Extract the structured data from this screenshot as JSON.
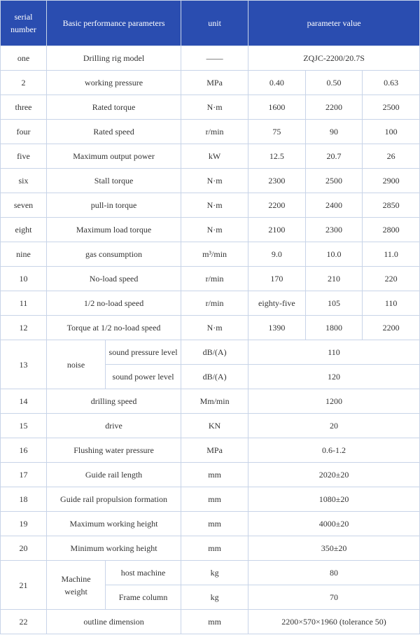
{
  "header": {
    "serial": "serial number",
    "param": "Basic performance parameters",
    "unit": "unit",
    "value": "parameter value"
  },
  "rows": {
    "r1": {
      "sn": "one",
      "param": "Drilling rig model",
      "unit": "——",
      "val": "ZQJC-2200/20.7S"
    },
    "r2": {
      "sn": "2",
      "param": "working pressure",
      "unit": "MPa",
      "v1": "0.40",
      "v2": "0.50",
      "v3": "0.63"
    },
    "r3": {
      "sn": "three",
      "param": "Rated torque",
      "unit": "N·m",
      "v1": "1600",
      "v2": "2200",
      "v3": "2500"
    },
    "r4": {
      "sn": "four",
      "param": "Rated speed",
      "unit": "r/min",
      "v1": "75",
      "v2": "90",
      "v3": "100"
    },
    "r5": {
      "sn": "five",
      "param": "Maximum output power",
      "unit": "kW",
      "v1": "12.5",
      "v2": "20.7",
      "v3": "26"
    },
    "r6": {
      "sn": "six",
      "param": "Stall torque",
      "unit": "N·m",
      "v1": "2300",
      "v2": "2500",
      "v3": "2900"
    },
    "r7": {
      "sn": "seven",
      "param": "pull-in torque",
      "unit": "N·m",
      "v1": "2200",
      "v2": "2400",
      "v3": "2850"
    },
    "r8": {
      "sn": "eight",
      "param": "Maximum load torque",
      "unit": "N·m",
      "v1": "2100",
      "v2": "2300",
      "v3": "2800"
    },
    "r9": {
      "sn": "nine",
      "param": "gas consumption",
      "unit": "m³/min",
      "v1": "9.0",
      "v2": "10.0",
      "v3": "11.0"
    },
    "r10": {
      "sn": "10",
      "param": "No-load speed",
      "unit": "r/min",
      "v1": "170",
      "v2": "210",
      "v3": "220"
    },
    "r11": {
      "sn": "11",
      "param": "1/2 no-load speed",
      "unit": "r/min",
      "v1": "eighty-five",
      "v2": "105",
      "v3": "110"
    },
    "r12": {
      "sn": "12",
      "param": "Torque at 1/2 no-load speed",
      "unit": "N·m",
      "v1": "1390",
      "v2": "1800",
      "v3": "2200"
    },
    "r13": {
      "sn": "13",
      "param": "noise",
      "sub1": "sound pressure level",
      "unit1": "dB/(A)",
      "val1": "110",
      "sub2": "sound power level",
      "unit2": "dB/(A)",
      "val2": "120"
    },
    "r14": {
      "sn": "14",
      "param": "drilling speed",
      "unit": "Mm/min",
      "val": "1200"
    },
    "r15": {
      "sn": "15",
      "param": "drive",
      "unit": "KN",
      "val": "20"
    },
    "r16": {
      "sn": "16",
      "param": "Flushing water pressure",
      "unit": "MPa",
      "val": "0.6-1.2"
    },
    "r17": {
      "sn": "17",
      "param": "Guide rail length",
      "unit": "mm",
      "val": "2020±20"
    },
    "r18": {
      "sn": "18",
      "param": "Guide rail propulsion formation",
      "unit": "mm",
      "val": "1080±20"
    },
    "r19": {
      "sn": "19",
      "param": "Maximum working height",
      "unit": "mm",
      "val": "4000±20"
    },
    "r20": {
      "sn": "20",
      "param": "Minimum working height",
      "unit": "mm",
      "val": "350±20"
    },
    "r21": {
      "sn": "21",
      "param": "Machine weight",
      "sub1": "host machine",
      "unit1": "kg",
      "val1": "80",
      "sub2": "Frame column",
      "unit2": "kg",
      "val2": "70"
    },
    "r22": {
      "sn": "22",
      "param": "outline dimension",
      "unit": "mm",
      "val": "2200×570×1960 (tolerance 50)"
    }
  }
}
